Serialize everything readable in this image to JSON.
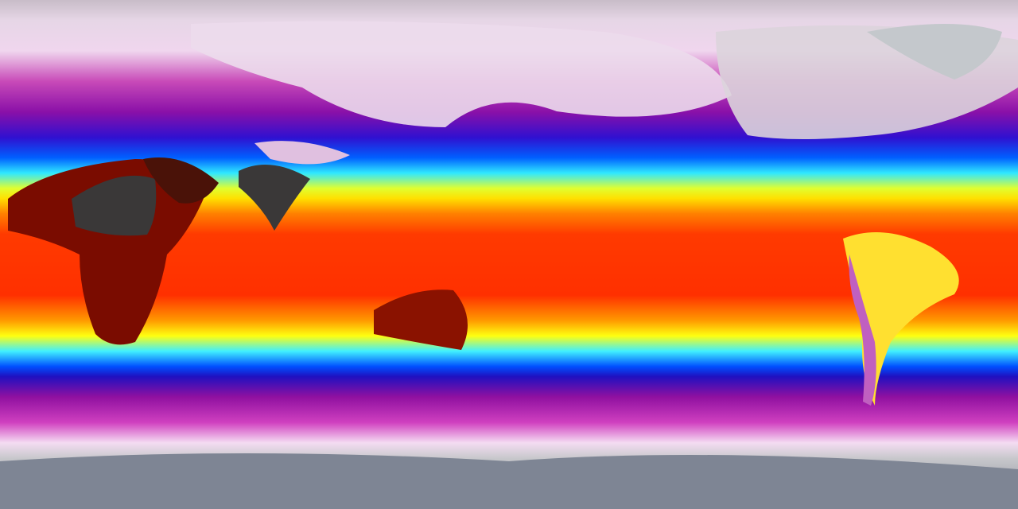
{
  "map": {
    "projection": "equirectangular",
    "variable": "temperature",
    "colormap": [
      "#8a8f9a",
      "#e8e0ea",
      "#f4d0f0",
      "#c020b0",
      "#8010a0",
      "#2010d0",
      "#0050ff",
      "#20e0ff",
      "#a0ff60",
      "#ffff00",
      "#ffa000",
      "#ff4000",
      "#e01000",
      "#600000",
      "#3a3838"
    ]
  }
}
